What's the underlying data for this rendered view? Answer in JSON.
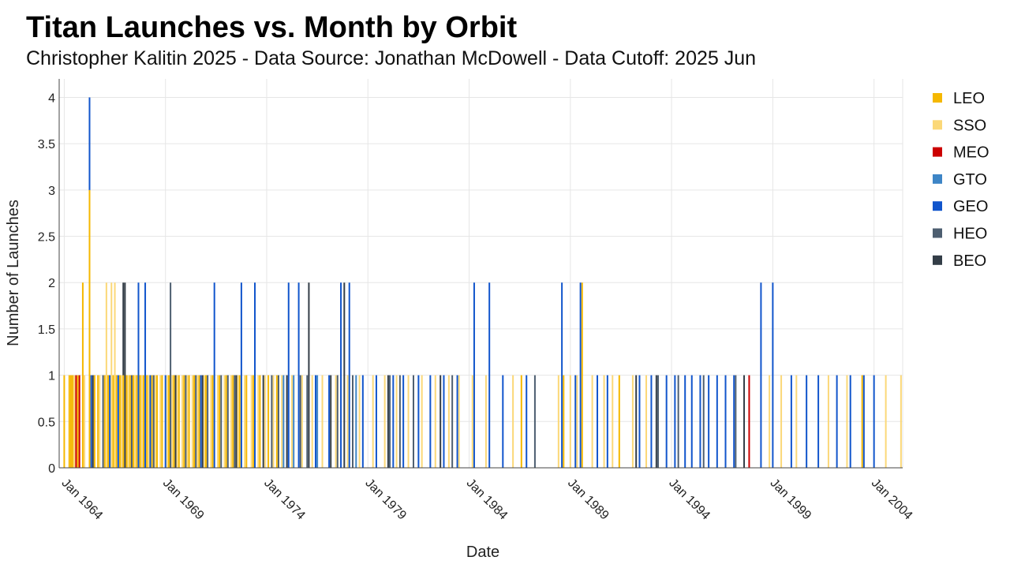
{
  "chart_data": {
    "type": "bar",
    "stacked": true,
    "title": "Titan Launches vs. Month by Orbit",
    "subtitle": "Christopher Kalitin 2025 - Data Source: Jonathan McDowell - Data Cutoff: 2025 Jun",
    "xlabel": "Date",
    "ylabel": "Number of Launches",
    "xlim": [
      "1963-10",
      "2005-06"
    ],
    "ylim": [
      0,
      4.2
    ],
    "yticks": [
      0,
      0.5,
      1,
      1.5,
      2,
      2.5,
      3,
      3.5,
      4
    ],
    "ytick_labels": [
      "0",
      "0.5",
      "1",
      "1.5",
      "2",
      "2.5",
      "3",
      "3.5",
      "4"
    ],
    "xticks": [
      "1964-01",
      "1969-01",
      "1974-01",
      "1979-01",
      "1984-01",
      "1989-01",
      "1994-01",
      "1999-01",
      "2004-01"
    ],
    "xtick_labels": [
      "Jan 1964",
      "Jan 1969",
      "Jan 1974",
      "Jan 1979",
      "Jan 1984",
      "Jan 1989",
      "Jan 1994",
      "Jan 1999",
      "Jan 2004"
    ],
    "grid": true,
    "legend_position": "right",
    "series": [
      {
        "name": "LEO",
        "color": "#f5b800",
        "points": [
          [
            "1964-01",
            1
          ],
          [
            "1964-04",
            1
          ],
          [
            "1964-05",
            1
          ],
          [
            "1964-06",
            1
          ],
          [
            "1964-09",
            1
          ],
          [
            "1964-12",
            2
          ],
          [
            "1965-04",
            3
          ],
          [
            "1965-07",
            1
          ],
          [
            "1965-09",
            1
          ],
          [
            "1966-01",
            1
          ],
          [
            "1966-03",
            1
          ],
          [
            "1966-06",
            1
          ],
          [
            "1966-08",
            1
          ],
          [
            "1966-10",
            1
          ],
          [
            "1966-12",
            1
          ],
          [
            "1967-02",
            1
          ],
          [
            "1967-04",
            1
          ],
          [
            "1967-06",
            1
          ],
          [
            "1967-08",
            1
          ],
          [
            "1967-10",
            1
          ],
          [
            "1967-12",
            1
          ],
          [
            "1968-02",
            1
          ],
          [
            "1968-05",
            1
          ],
          [
            "1968-08",
            1
          ],
          [
            "1968-11",
            1
          ],
          [
            "1969-03",
            1
          ],
          [
            "1969-06",
            1
          ],
          [
            "1969-09",
            1
          ],
          [
            "1969-12",
            1
          ],
          [
            "1970-03",
            1
          ],
          [
            "1970-06",
            1
          ],
          [
            "1970-09",
            1
          ],
          [
            "1971-01",
            1
          ],
          [
            "1971-05",
            1
          ],
          [
            "1971-09",
            1
          ],
          [
            "1972-01",
            1
          ],
          [
            "1972-05",
            1
          ],
          [
            "1972-09",
            1
          ],
          [
            "1973-01",
            1
          ],
          [
            "1973-05",
            1
          ],
          [
            "1973-09",
            1
          ],
          [
            "1974-02",
            1
          ],
          [
            "1974-07",
            1
          ],
          [
            "1986-08",
            1
          ],
          [
            "1988-09",
            1
          ],
          [
            "1989-08",
            2
          ],
          [
            "1991-06",
            1
          ],
          [
            "2003-06",
            1
          ]
        ]
      },
      {
        "name": "SSO",
        "color": "#fbd878",
        "points": [
          [
            "1964-07",
            1
          ],
          [
            "1965-01",
            1
          ],
          [
            "1965-10",
            1
          ],
          [
            "1966-02",
            2
          ],
          [
            "1966-05",
            2
          ],
          [
            "1966-07",
            2
          ],
          [
            "1966-11",
            1
          ],
          [
            "1967-03",
            1
          ],
          [
            "1967-07",
            1
          ],
          [
            "1967-11",
            1
          ],
          [
            "1968-03",
            1
          ],
          [
            "1968-07",
            1
          ],
          [
            "1968-10",
            1
          ],
          [
            "1969-02",
            1
          ],
          [
            "1969-05",
            1
          ],
          [
            "1969-08",
            1
          ],
          [
            "1969-11",
            1
          ],
          [
            "1970-02",
            1
          ],
          [
            "1970-05",
            1
          ],
          [
            "1970-08",
            1
          ],
          [
            "1970-12",
            1
          ],
          [
            "1971-04",
            1
          ],
          [
            "1971-08",
            1
          ],
          [
            "1971-12",
            1
          ],
          [
            "1972-04",
            1
          ],
          [
            "1972-08",
            1
          ],
          [
            "1972-12",
            1
          ],
          [
            "1973-04",
            1
          ],
          [
            "1973-08",
            1
          ],
          [
            "1973-12",
            1
          ],
          [
            "1974-05",
            1
          ],
          [
            "1974-10",
            1
          ],
          [
            "1975-04",
            1
          ],
          [
            "1975-10",
            1
          ],
          [
            "1976-04",
            1
          ],
          [
            "1976-10",
            1
          ],
          [
            "1977-06",
            1
          ],
          [
            "1978-01",
            1
          ],
          [
            "1978-08",
            1
          ],
          [
            "1979-04",
            1
          ],
          [
            "1979-11",
            1
          ],
          [
            "1980-06",
            1
          ],
          [
            "1981-01",
            1
          ],
          [
            "1981-09",
            1
          ],
          [
            "1982-05",
            1
          ],
          [
            "1983-01",
            1
          ],
          [
            "1983-07",
            1
          ],
          [
            "1984-03",
            1
          ],
          [
            "1984-11",
            1
          ],
          [
            "1986-03",
            1
          ],
          [
            "1988-06",
            1
          ],
          [
            "1989-01",
            1
          ],
          [
            "1989-05",
            1
          ],
          [
            "1990-02",
            1
          ],
          [
            "1990-09",
            1
          ],
          [
            "1991-02",
            1
          ],
          [
            "1992-02",
            1
          ],
          [
            "1992-10",
            1
          ],
          [
            "1998-11",
            1
          ],
          [
            "1999-06",
            1
          ],
          [
            "2000-03",
            1
          ],
          [
            "2001-10",
            1
          ],
          [
            "2002-09",
            1
          ],
          [
            "2004-08",
            1
          ],
          [
            "2005-05",
            1
          ]
        ]
      },
      {
        "name": "MEO",
        "color": "#cc0000",
        "points": [
          [
            "1964-08",
            1
          ],
          [
            "1964-10",
            1
          ],
          [
            "1997-11",
            1
          ]
        ]
      },
      {
        "name": "GTO",
        "color": "#3d85c6",
        "points": [
          [
            "1974-11",
            1
          ],
          [
            "1975-05",
            1
          ],
          [
            "1976-07",
            1
          ],
          [
            "1978-06",
            1
          ]
        ]
      },
      {
        "name": "GEO",
        "color": "#1155cc",
        "points": [
          [
            "1965-04",
            1
          ],
          [
            "1965-05",
            1
          ],
          [
            "1966-04",
            1
          ],
          [
            "1966-09",
            1
          ],
          [
            "1967-09",
            2
          ],
          [
            "1968-01",
            2
          ],
          [
            "1968-04",
            1
          ],
          [
            "1969-01",
            1
          ],
          [
            "1970-10",
            1
          ],
          [
            "1971-06",
            2
          ],
          [
            "1972-10",
            2
          ],
          [
            "1973-06",
            2
          ],
          [
            "1975-02",
            2
          ],
          [
            "1975-08",
            2
          ],
          [
            "1976-06",
            1
          ],
          [
            "1977-02",
            1
          ],
          [
            "1977-09",
            2
          ],
          [
            "1978-02",
            2
          ],
          [
            "1978-10",
            1
          ],
          [
            "1979-06",
            1
          ],
          [
            "1980-04",
            1
          ],
          [
            "1980-10",
            1
          ],
          [
            "1981-07",
            1
          ],
          [
            "1982-02",
            1
          ],
          [
            "1982-10",
            1
          ],
          [
            "1983-06",
            1
          ],
          [
            "1984-04",
            2
          ],
          [
            "1985-01",
            2
          ],
          [
            "1985-09",
            1
          ],
          [
            "1986-11",
            1
          ],
          [
            "1988-08",
            2
          ],
          [
            "1989-04",
            1
          ],
          [
            "1989-07",
            2
          ],
          [
            "1990-05",
            1
          ],
          [
            "1990-11",
            1
          ],
          [
            "1992-06",
            1
          ],
          [
            "1993-01",
            1
          ],
          [
            "1993-10",
            1
          ],
          [
            "1994-03",
            1
          ],
          [
            "1994-09",
            1
          ],
          [
            "1995-01",
            1
          ],
          [
            "1995-06",
            1
          ],
          [
            "1995-11",
            1
          ],
          [
            "1996-04",
            1
          ],
          [
            "1996-09",
            1
          ],
          [
            "1997-02",
            1
          ],
          [
            "1998-06",
            2
          ],
          [
            "1999-01",
            2
          ],
          [
            "1999-12",
            1
          ],
          [
            "2000-09",
            1
          ],
          [
            "2001-04",
            1
          ],
          [
            "2002-03",
            1
          ],
          [
            "2002-11",
            1
          ],
          [
            "2003-07",
            1
          ],
          [
            "2004-01",
            1
          ]
        ]
      },
      {
        "name": "HEO",
        "color": "#4d5e70",
        "points": [
          [
            "1965-12",
            1
          ],
          [
            "1967-05",
            1
          ],
          [
            "1968-06",
            1
          ],
          [
            "1969-04",
            2
          ],
          [
            "1970-01",
            1
          ],
          [
            "1970-07",
            1
          ],
          [
            "1971-02",
            1
          ],
          [
            "1971-10",
            1
          ],
          [
            "1972-02",
            1
          ],
          [
            "1972-06",
            1
          ],
          [
            "1974-04",
            1
          ],
          [
            "1974-08",
            1
          ],
          [
            "1975-09",
            1
          ],
          [
            "1976-01",
            1
          ],
          [
            "1977-07",
            1
          ],
          [
            "1978-04",
            1
          ],
          [
            "1980-02",
            1
          ],
          [
            "1980-08",
            1
          ],
          [
            "1981-04",
            1
          ],
          [
            "1983-03",
            1
          ],
          [
            "1987-04",
            1
          ],
          [
            "1993-05",
            1
          ],
          [
            "1994-05",
            1
          ],
          [
            "1995-08",
            1
          ],
          [
            "1997-03",
            1
          ]
        ]
      },
      {
        "name": "BEO",
        "color": "#333d47",
        "points": [
          [
            "1965-06",
            1
          ],
          [
            "1966-12",
            1
          ],
          [
            "1967-01",
            2
          ],
          [
            "1969-07",
            1
          ],
          [
            "1970-11",
            1
          ],
          [
            "1972-07",
            1
          ],
          [
            "1973-11",
            1
          ],
          [
            "1975-01",
            1
          ],
          [
            "1976-02",
            2
          ],
          [
            "1977-03",
            1
          ],
          [
            "1977-11",
            2
          ],
          [
            "1980-01",
            1
          ],
          [
            "1982-08",
            1
          ],
          [
            "1992-04",
            1
          ],
          [
            "1993-04",
            1
          ],
          [
            "1997-08",
            1
          ]
        ]
      }
    ]
  }
}
